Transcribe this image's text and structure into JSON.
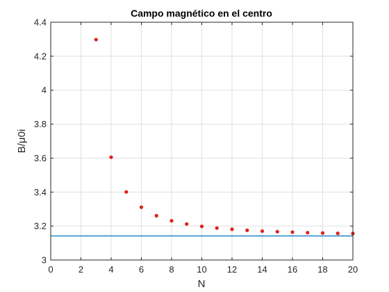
{
  "chart_data": {
    "type": "scatter",
    "title": "Campo magnético en el centro",
    "xlabel": "N",
    "ylabel": "B/μ0i",
    "xlim": [
      0,
      20
    ],
    "ylim": [
      3,
      4.4
    ],
    "xticks": [
      0,
      2,
      4,
      6,
      8,
      10,
      12,
      14,
      16,
      18,
      20
    ],
    "yticks": [
      3,
      3.2,
      3.4,
      3.6,
      3.8,
      4,
      4.2,
      4.4
    ],
    "xtick_labels": [
      "0",
      "2",
      "4",
      "6",
      "8",
      "10",
      "12",
      "14",
      "16",
      "18",
      "20"
    ],
    "ytick_labels": [
      "3",
      "3.2",
      "3.4",
      "3.6",
      "3.8",
      "4",
      "4.2",
      "4.4"
    ],
    "grid": true,
    "series": [
      {
        "kind": "points",
        "color": "#e0201a",
        "x": [
          3,
          4,
          5,
          6,
          7,
          8,
          9,
          10,
          11,
          12,
          13,
          14,
          15,
          16,
          17,
          18,
          19,
          20
        ],
        "y": [
          4.298,
          3.605,
          3.401,
          3.311,
          3.261,
          3.231,
          3.212,
          3.198,
          3.188,
          3.181,
          3.175,
          3.17,
          3.167,
          3.164,
          3.161,
          3.159,
          3.157,
          3.156
        ]
      },
      {
        "kind": "hline",
        "color": "#0072bd",
        "y": 3.1416
      }
    ]
  }
}
